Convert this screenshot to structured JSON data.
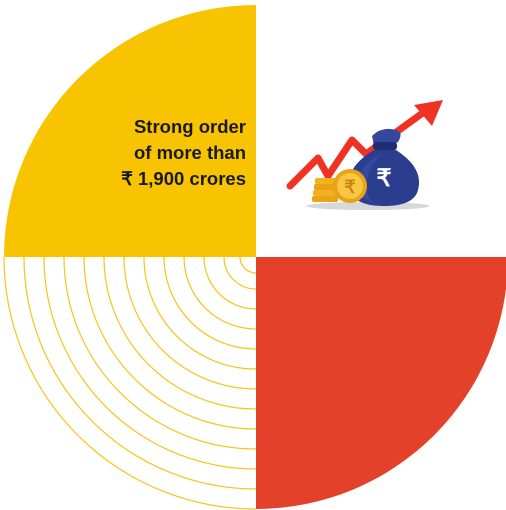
{
  "headline": {
    "line1": "Strong order",
    "line2": "of more than",
    "line3": "₹ 1,900 crores"
  },
  "icons": {
    "growth": "money-bag-growth-icon",
    "coin_symbol": "₹",
    "bag_symbol": "₹"
  },
  "colors": {
    "yellow": "#F8C300",
    "orange_red": "#E4412A",
    "arc_line": "#F5C519",
    "arrow_red": "#EE3324",
    "bag_navy": "#2B3D8F",
    "coin_gold": "#F2B11E"
  }
}
